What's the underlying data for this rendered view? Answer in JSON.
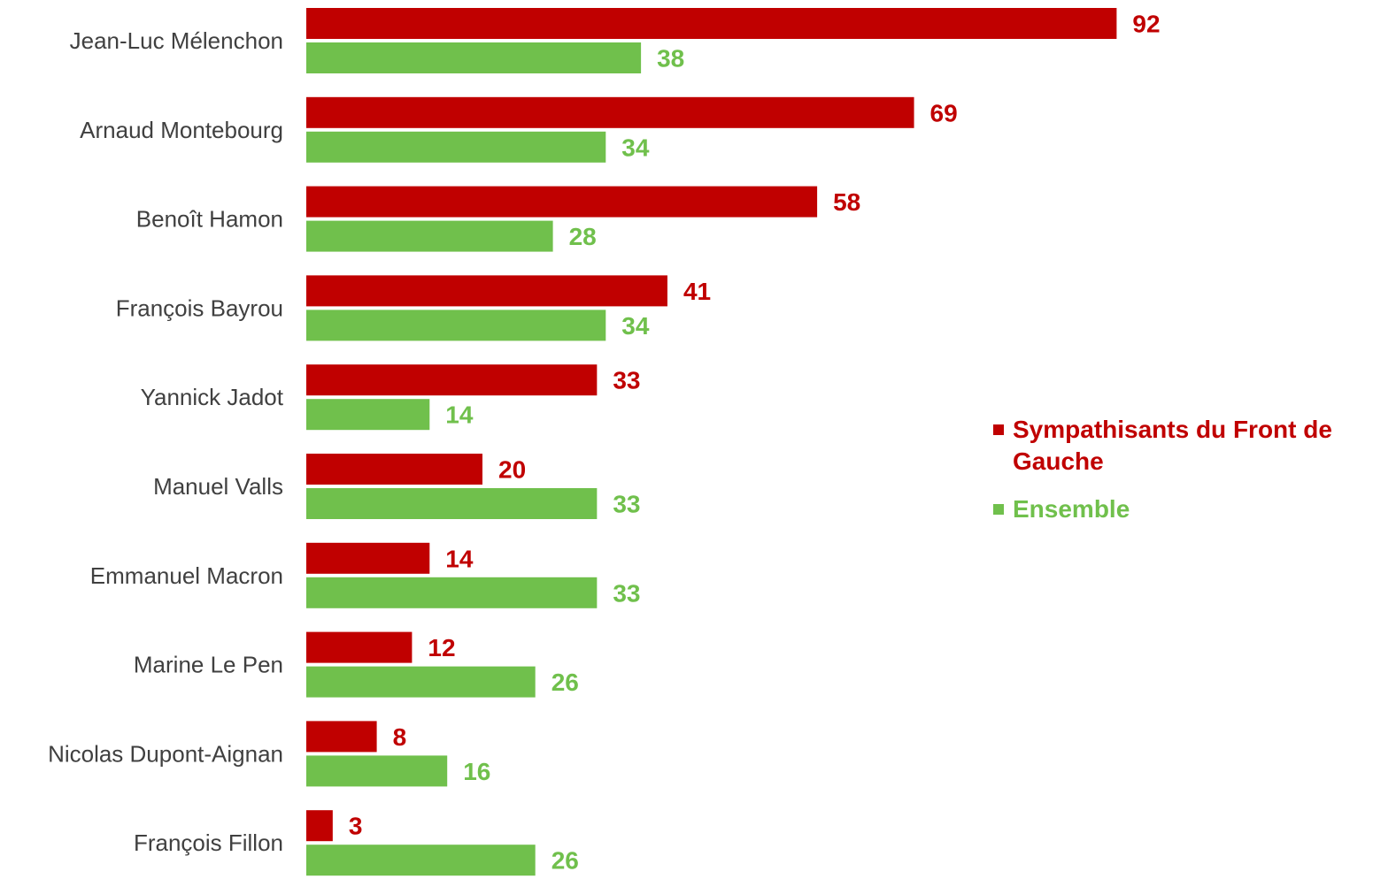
{
  "chart_data": {
    "type": "bar",
    "orientation": "horizontal",
    "categories": [
      "Jean-Luc Mélenchon",
      "Arnaud Montebourg",
      "Benoît Hamon",
      "François Bayrou",
      "Yannick Jadot",
      "Manuel Valls",
      "Emmanuel Macron",
      "Marine Le Pen",
      "Nicolas Dupont-Aignan",
      "François Fillon"
    ],
    "series": [
      {
        "name": "Sympathisants du Front de Gauche",
        "color": "#c00000",
        "values": [
          92,
          69,
          58,
          41,
          33,
          20,
          14,
          12,
          8,
          3
        ]
      },
      {
        "name": "Ensemble",
        "color": "#70c04c",
        "values": [
          38,
          34,
          28,
          34,
          14,
          33,
          33,
          26,
          16,
          26
        ]
      }
    ],
    "data_labels": true,
    "legend_position": "right",
    "grid": false,
    "xlim": [
      0,
      100
    ]
  }
}
